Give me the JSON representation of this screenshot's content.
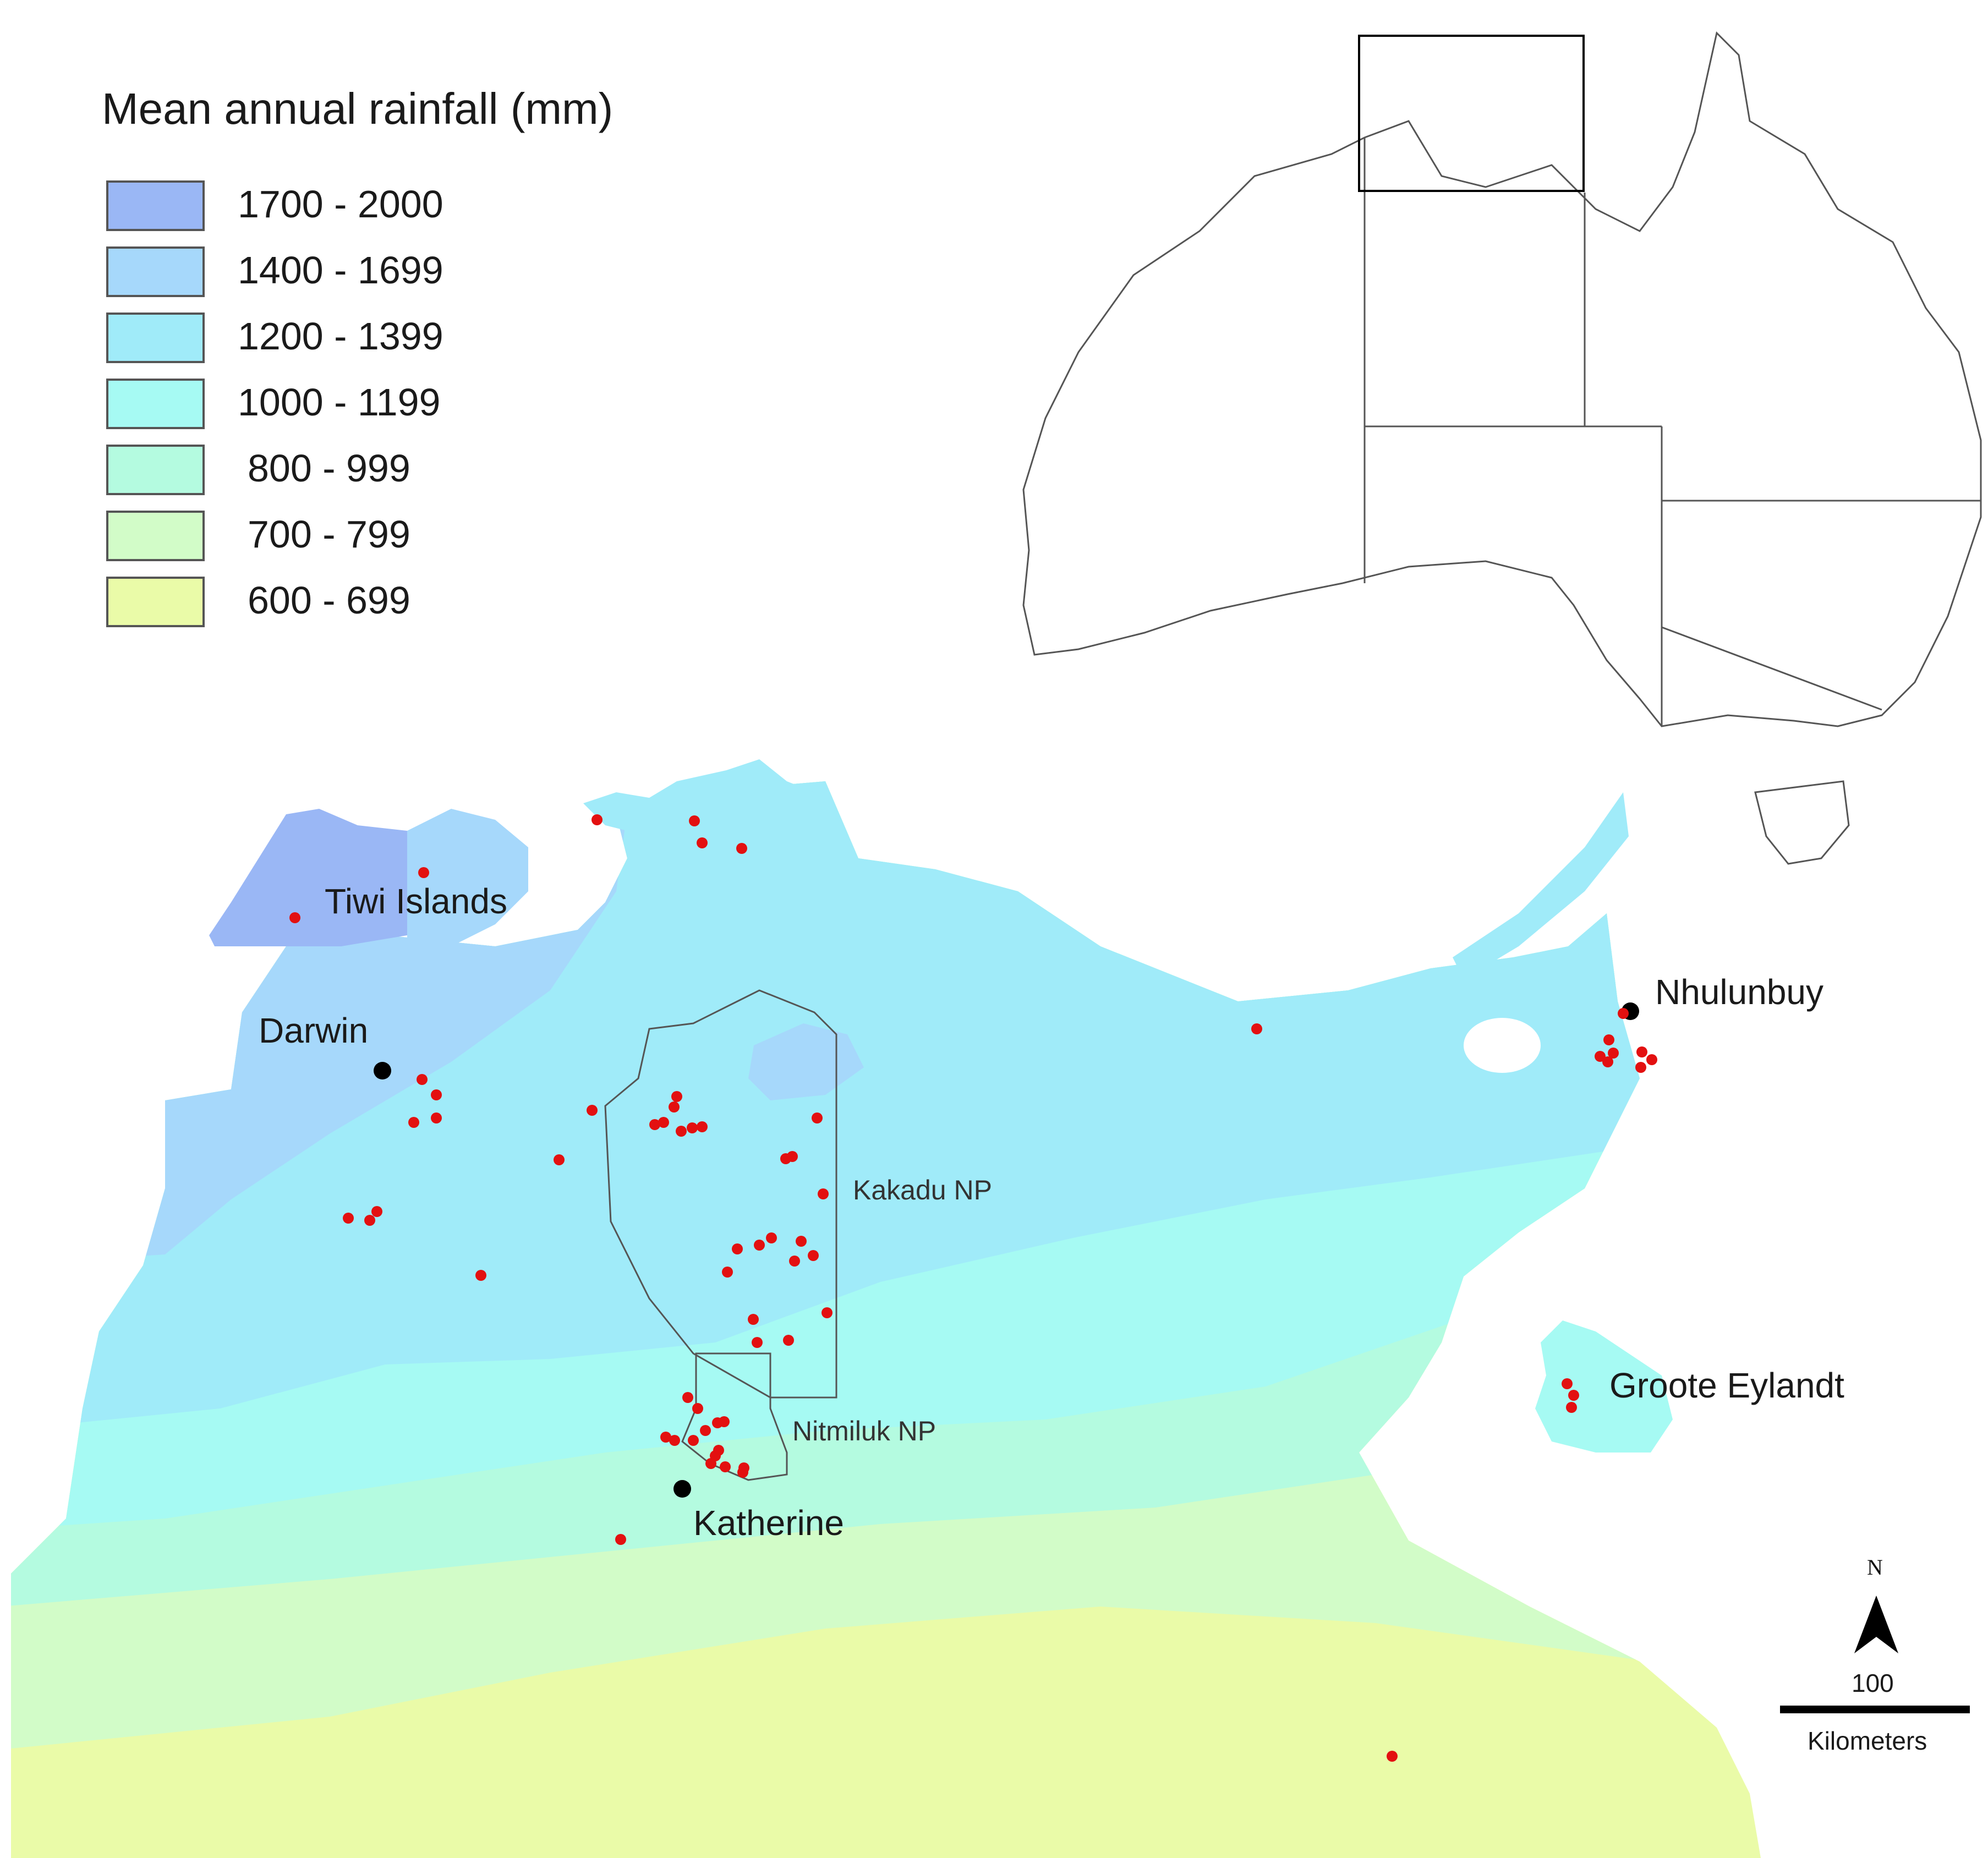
{
  "legend": {
    "title": "Mean annual rainfall (mm)",
    "classes": [
      {
        "label": "1700 - 2000",
        "color": "#9ab7f5"
      },
      {
        "label": "1400 - 1699",
        "color": "#a6d8fb"
      },
      {
        "label": "1200 - 1399",
        "color": "#a0ebf9"
      },
      {
        "label": "1000 - 1199",
        "color": "#a6faf3"
      },
      {
        "label": "800 - 999",
        "color": "#b4fbe0"
      },
      {
        "label": "700 - 799",
        "color": "#d2fcc8"
      },
      {
        "label": "600 - 699",
        "color": "#eafba8"
      }
    ]
  },
  "places": {
    "tiwi": "Tiwi Islands",
    "darwin": "Darwin",
    "katherine": "Katherine",
    "nhulunbuy": "Nhulunbuy",
    "groote": "Groote Eylandt",
    "kakadu": "Kakadu NP",
    "nitmiluk": "Nitmiluk NP"
  },
  "scale_bar": {
    "value": "100",
    "units": "Kilometers"
  },
  "north_arrow": {
    "label": "N"
  },
  "colors": {
    "site_marker": "#e31010",
    "town_marker": "#000000",
    "outline": "#555555"
  }
}
